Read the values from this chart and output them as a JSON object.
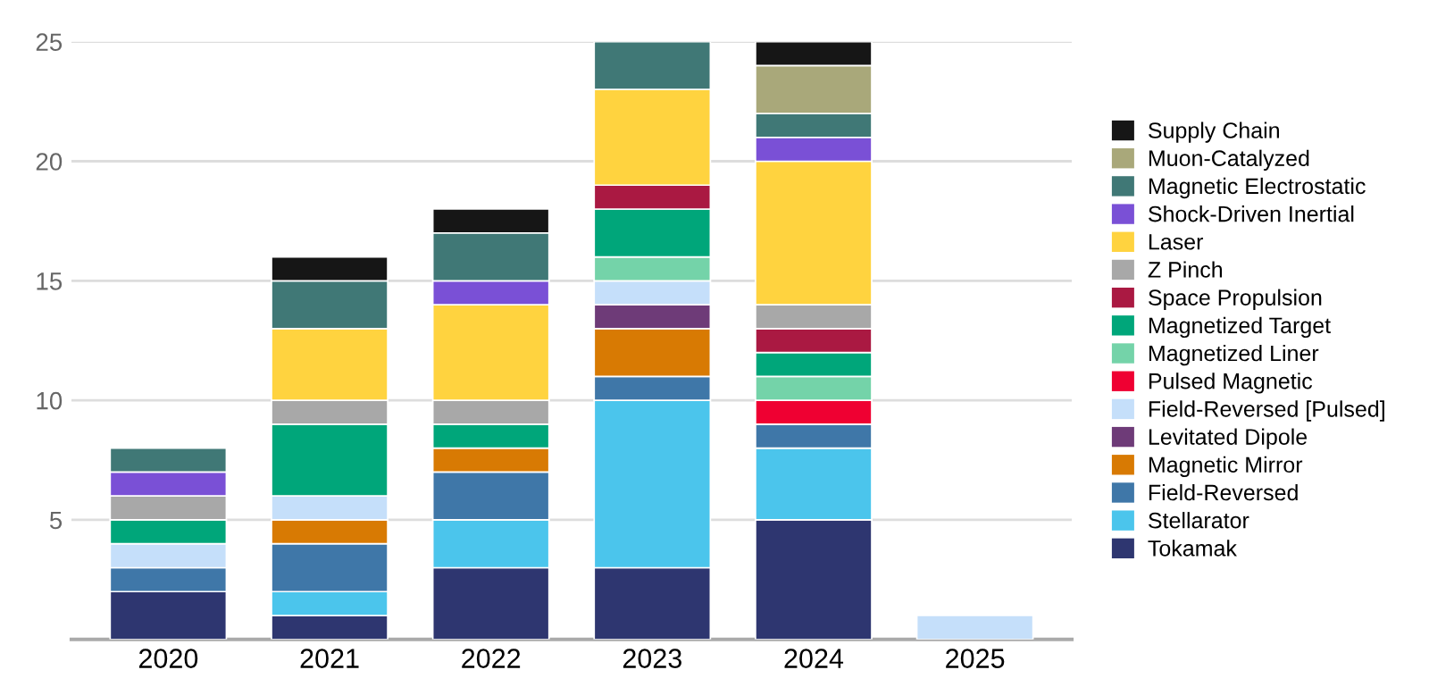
{
  "chart_data": {
    "type": "bar",
    "stacked": true,
    "categories": [
      "2020",
      "2021",
      "2022",
      "2023",
      "2024",
      "2025"
    ],
    "series": [
      {
        "name": "Tokamak",
        "color": "#2e3670",
        "values": [
          2,
          1,
          3,
          3,
          5,
          0
        ]
      },
      {
        "name": "Stellarator",
        "color": "#4bc5ec",
        "values": [
          0,
          1,
          2,
          7,
          3,
          0
        ]
      },
      {
        "name": "Field-Reversed",
        "color": "#3f77a8",
        "values": [
          1,
          2,
          2,
          1,
          1,
          0
        ]
      },
      {
        "name": "Magnetic Mirror",
        "color": "#d87a03",
        "values": [
          0,
          1,
          1,
          2,
          0,
          0
        ]
      },
      {
        "name": "Levitated Dipole",
        "color": "#6e3b78",
        "values": [
          0,
          0,
          0,
          1,
          0,
          0
        ]
      },
      {
        "name": "Field-Reversed [Pulsed]",
        "color": "#c5dffa",
        "values": [
          1,
          1,
          0,
          1,
          0,
          1
        ]
      },
      {
        "name": "Pulsed Magnetic",
        "color": "#ef0032",
        "values": [
          0,
          0,
          0,
          0,
          1,
          0
        ]
      },
      {
        "name": "Magnetized Liner",
        "color": "#74d3a9",
        "values": [
          0,
          0,
          0,
          1,
          1,
          0
        ]
      },
      {
        "name": "Magnetized Target",
        "color": "#00a67a",
        "values": [
          1,
          3,
          1,
          2,
          1,
          0
        ]
      },
      {
        "name": "Space Propulsion",
        "color": "#aa1942",
        "values": [
          0,
          0,
          0,
          1,
          1,
          0
        ]
      },
      {
        "name": "Z Pinch",
        "color": "#a8a8a8",
        "values": [
          1,
          1,
          1,
          0,
          1,
          0
        ]
      },
      {
        "name": "Laser",
        "color": "#ffd33f",
        "values": [
          0,
          3,
          4,
          4,
          6,
          0
        ]
      },
      {
        "name": "Shock-Driven Inertial",
        "color": "#7a50d6",
        "values": [
          1,
          0,
          1,
          0,
          1,
          0
        ]
      },
      {
        "name": "Magnetic Electrostatic",
        "color": "#407876",
        "values": [
          1,
          2,
          2,
          2,
          1,
          0
        ]
      },
      {
        "name": "Muon-Catalyzed",
        "color": "#a9a87a",
        "values": [
          0,
          0,
          0,
          0,
          2,
          0
        ]
      },
      {
        "name": "Supply Chain",
        "color": "#161616",
        "values": [
          0,
          1,
          1,
          0,
          1,
          0
        ]
      }
    ],
    "ylim": [
      0,
      25
    ],
    "yticks": [
      {
        "value": 0,
        "label": null
      },
      5,
      10,
      15,
      20,
      25
    ],
    "grid": "y",
    "legend": "right"
  }
}
